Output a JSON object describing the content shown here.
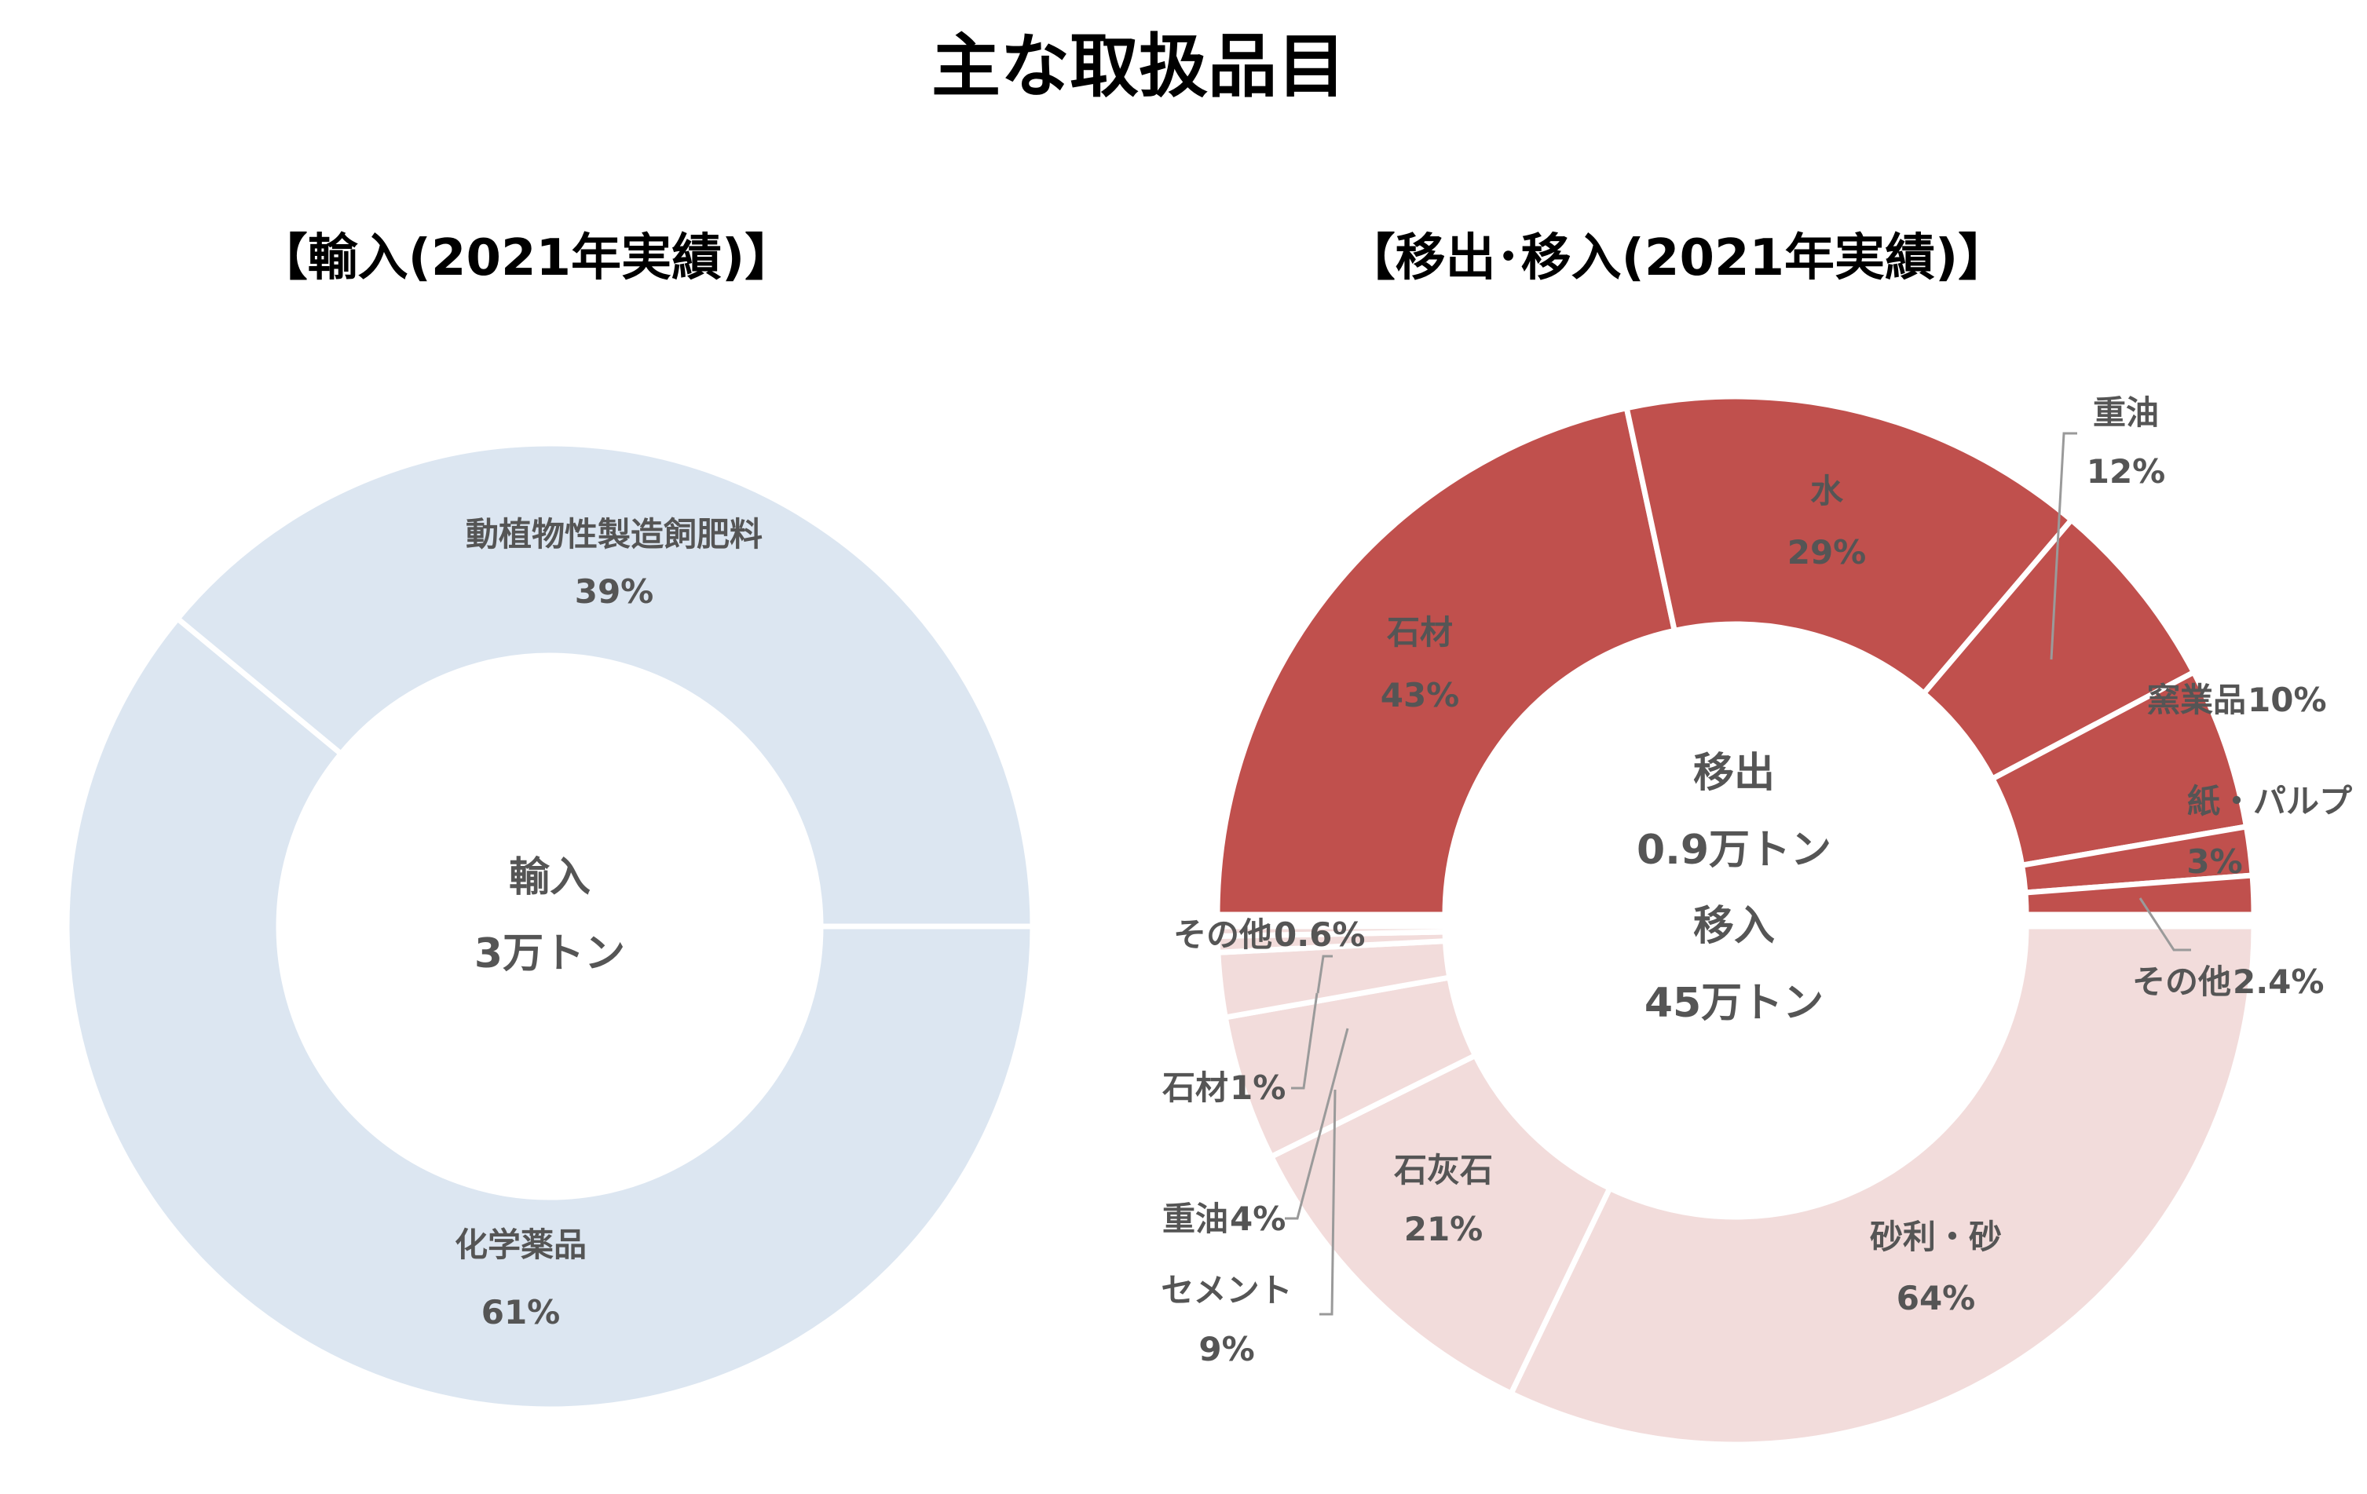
{
  "title": "主な取扱品目",
  "chart_data": [
    {
      "type": "pie",
      "variant": "donut",
      "subtitle": "【輸入(2021年実績)】",
      "center_label": [
        "輸入",
        "3万トン"
      ],
      "color": "#dce6f1",
      "slices": [
        {
          "name": "動植物性製造飼肥料",
          "pct_label": "39%",
          "value": 39
        },
        {
          "name": "化学薬品",
          "pct_label": "61%",
          "value": 61
        }
      ]
    },
    {
      "type": "pie",
      "variant": "donut",
      "subtitle": "【移出･移入(2021年実績)】",
      "center_label": [
        "移出",
        "0.9万トン",
        "移入",
        "45万トン"
      ],
      "series": [
        {
          "name": "移出",
          "color": "#c0504d",
          "slices": [
            {
              "name": "石材",
              "pct_label": "43%",
              "value": 43
            },
            {
              "name": "水",
              "pct_label": "29%",
              "value": 29
            },
            {
              "name": "重油",
              "pct_label": "12%",
              "value": 12
            },
            {
              "name": "窯業品",
              "pct_label": "10%",
              "value": 10
            },
            {
              "name": "紙・パルプ",
              "pct_label": "3%",
              "value": 3
            },
            {
              "name": "その他",
              "pct_label": "2.4%",
              "value": 2.4
            }
          ]
        },
        {
          "name": "移入",
          "color": "#f2dcdb",
          "slices": [
            {
              "name": "砂利・砂",
              "pct_label": "64%",
              "value": 64
            },
            {
              "name": "石灰石",
              "pct_label": "21%",
              "value": 21
            },
            {
              "name": "セメント",
              "pct_label": "9%",
              "value": 9
            },
            {
              "name": "重油",
              "pct_label": "4%",
              "value": 4
            },
            {
              "name": "石材",
              "pct_label": "1%",
              "value": 1
            },
            {
              "name": "その他",
              "pct_label": "0.6%",
              "value": 0.6
            }
          ]
        }
      ]
    }
  ]
}
